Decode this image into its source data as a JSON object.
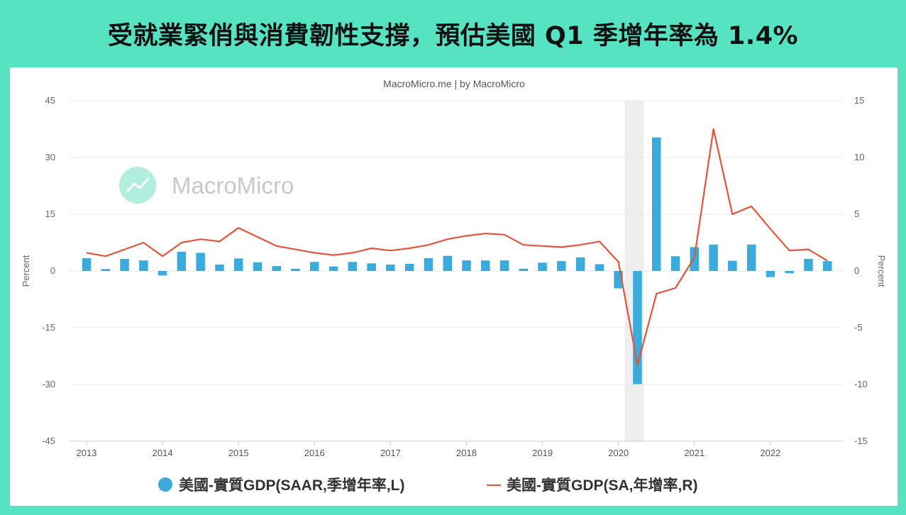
{
  "headline": "受就業緊俏與消費韌性支撐，預估美國 Q1 季增年率為 1.4%",
  "colors": {
    "background": "#56e3c2",
    "bar": "#3aabdb",
    "line": "#e4543c",
    "recession": "#eeeeee",
    "logo": "#7ee3c8"
  },
  "chart_data": {
    "type": "bar+line",
    "credit": "MacroMicro.me | by MacroMicro",
    "watermark": "MacroMicro",
    "left_axis": {
      "title": "Percent",
      "min": -45,
      "max": 45,
      "ticks": [
        45,
        30,
        15,
        0,
        -15,
        -30,
        -45
      ]
    },
    "right_axis": {
      "title": "Percent",
      "min": -15,
      "max": 15,
      "ticks": [
        15,
        10,
        5,
        0,
        -5,
        -10,
        -15
      ]
    },
    "x_ticks": [
      "2013",
      "2014",
      "2015",
      "2016",
      "2017",
      "2018",
      "2019",
      "2020",
      "2021",
      "2022"
    ],
    "recession": {
      "start": "2020-02",
      "end": "2020-04"
    },
    "series": [
      {
        "name": "美國-實質GDP(SAAR,季增年率,L)",
        "type": "bar",
        "axis": "left",
        "x": [
          "2013Q1",
          "2013Q2",
          "2013Q3",
          "2013Q4",
          "2014Q1",
          "2014Q2",
          "2014Q3",
          "2014Q4",
          "2015Q1",
          "2015Q2",
          "2015Q3",
          "2015Q4",
          "2016Q1",
          "2016Q2",
          "2016Q3",
          "2016Q4",
          "2017Q1",
          "2017Q2",
          "2017Q3",
          "2017Q4",
          "2018Q1",
          "2018Q2",
          "2018Q3",
          "2018Q4",
          "2019Q1",
          "2019Q2",
          "2019Q3",
          "2019Q4",
          "2020Q1",
          "2020Q2",
          "2020Q3",
          "2020Q4",
          "2021Q1",
          "2021Q2",
          "2021Q3",
          "2021Q4",
          "2022Q1",
          "2022Q2",
          "2022Q3",
          "2022Q4"
        ],
        "values": [
          3.4,
          0.5,
          3.2,
          2.8,
          -1.2,
          5.1,
          4.8,
          1.7,
          3.3,
          2.3,
          1.3,
          0.6,
          2.4,
          1.2,
          2.4,
          2.0,
          1.7,
          1.9,
          3.4,
          4.0,
          2.8,
          2.8,
          2.8,
          0.6,
          2.2,
          2.6,
          3.6,
          1.8,
          -4.6,
          -29.9,
          35.3,
          3.9,
          6.3,
          7.0,
          2.7,
          7.0,
          -1.6,
          -0.6,
          3.2,
          2.6
        ]
      },
      {
        "name": "美國-實質GDP(SA,年增率,R)",
        "type": "line",
        "axis": "right",
        "x": [
          "2013Q1",
          "2013Q2",
          "2013Q3",
          "2013Q4",
          "2014Q1",
          "2014Q2",
          "2014Q3",
          "2014Q4",
          "2015Q1",
          "2015Q2",
          "2015Q3",
          "2015Q4",
          "2016Q1",
          "2016Q2",
          "2016Q3",
          "2016Q4",
          "2017Q1",
          "2017Q2",
          "2017Q3",
          "2017Q4",
          "2018Q1",
          "2018Q2",
          "2018Q3",
          "2018Q4",
          "2019Q1",
          "2019Q2",
          "2019Q3",
          "2019Q4",
          "2020Q1",
          "2020Q2",
          "2020Q3",
          "2020Q4",
          "2021Q1",
          "2021Q2",
          "2021Q3",
          "2021Q4",
          "2022Q1",
          "2022Q2",
          "2022Q3",
          "2022Q4"
        ],
        "values": [
          1.6,
          1.3,
          1.9,
          2.5,
          1.3,
          2.5,
          2.8,
          2.6,
          3.8,
          3.0,
          2.2,
          1.9,
          1.6,
          1.4,
          1.6,
          2.0,
          1.8,
          2.0,
          2.3,
          2.8,
          3.1,
          3.3,
          3.2,
          2.3,
          2.2,
          2.1,
          2.3,
          2.6,
          0.8,
          -8.3,
          -2.0,
          -1.5,
          1.2,
          12.5,
          5.0,
          5.7,
          3.7,
          1.8,
          1.9,
          0.9
        ]
      }
    ]
  }
}
